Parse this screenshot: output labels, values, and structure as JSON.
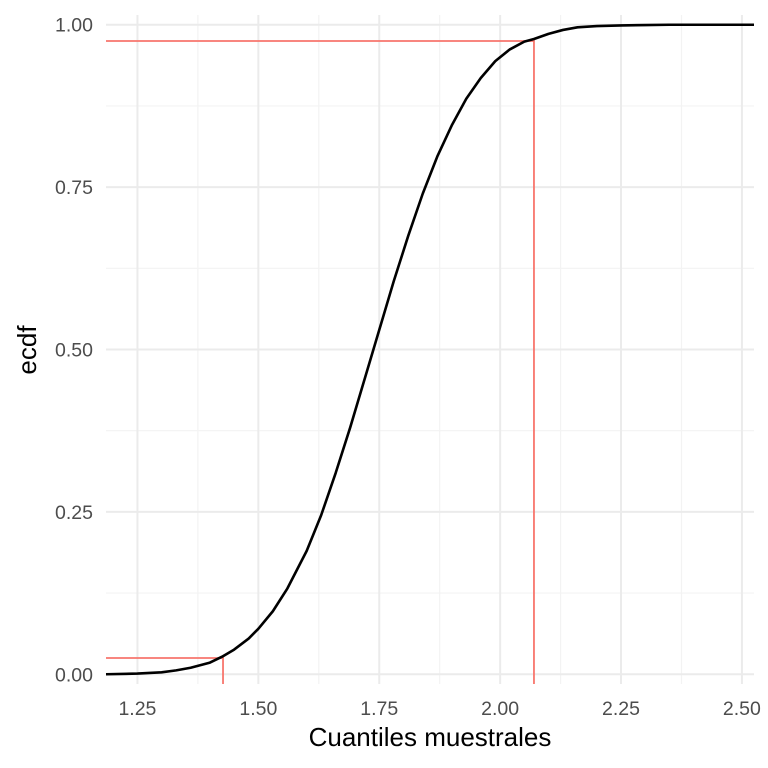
{
  "chart_data": {
    "type": "line",
    "title": "",
    "xlabel": "Cuantiles muestrales",
    "ylabel": "ecdf",
    "xlim": [
      1.185,
      2.525
    ],
    "ylim": [
      -0.015,
      1.015
    ],
    "x_ticks": [
      1.25,
      1.5,
      1.75,
      2.0,
      2.25,
      2.5
    ],
    "x_tick_labels": [
      "1.25",
      "1.50",
      "1.75",
      "2.00",
      "2.25",
      "2.50"
    ],
    "y_ticks": [
      0,
      0.25,
      0.5,
      0.75,
      1.0
    ],
    "y_tick_labels": [
      "0.00",
      "0.25",
      "0.50",
      "0.75",
      "1.00"
    ],
    "grid": true,
    "legend": "none",
    "series": [
      {
        "color": "#000000",
        "x": [
          1.185,
          1.25,
          1.3,
          1.33,
          1.36,
          1.4,
          1.425,
          1.45,
          1.48,
          1.5,
          1.53,
          1.56,
          1.6,
          1.63,
          1.66,
          1.69,
          1.72,
          1.75,
          1.78,
          1.81,
          1.84,
          1.87,
          1.9,
          1.93,
          1.96,
          1.99,
          2.02,
          2.05,
          2.07,
          2.1,
          2.13,
          2.16,
          2.2,
          2.25,
          2.3,
          2.35,
          2.4,
          2.45,
          2.5,
          2.525
        ],
        "y": [
          0.0,
          0.001,
          0.003,
          0.006,
          0.01,
          0.018,
          0.027,
          0.038,
          0.055,
          0.07,
          0.097,
          0.132,
          0.19,
          0.245,
          0.31,
          0.38,
          0.455,
          0.53,
          0.605,
          0.675,
          0.74,
          0.797,
          0.845,
          0.886,
          0.918,
          0.944,
          0.962,
          0.974,
          0.978,
          0.986,
          0.992,
          0.996,
          0.998,
          0.999,
          0.9995,
          1.0,
          1.0,
          1.0,
          1.0,
          1.0
        ]
      }
    ],
    "reference_lines": [
      {
        "color": "#f8766d",
        "x": 1.427,
        "y": 0.025
      },
      {
        "color": "#f8766d",
        "x": 2.07,
        "y": 0.975
      }
    ]
  }
}
